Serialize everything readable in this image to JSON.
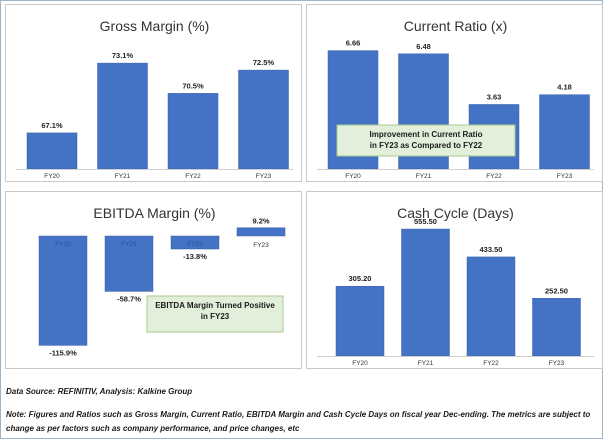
{
  "chart_data": [
    {
      "type": "bar",
      "title": "Gross Margin (%)",
      "categories": [
        "FY20",
        "FY21",
        "FY22",
        "FY23"
      ],
      "values": [
        67.1,
        73.1,
        70.5,
        72.5
      ],
      "labels": [
        "67.1%",
        "73.1%",
        "70.5%",
        "72.5%"
      ],
      "ylim": [
        64,
        75
      ],
      "bar_color": "#4472c4",
      "legend": "none"
    },
    {
      "type": "bar",
      "title": "Current Ratio (x)",
      "categories": [
        "FY20",
        "FY21",
        "FY22",
        "FY23"
      ],
      "values": [
        6.66,
        6.48,
        3.63,
        4.18
      ],
      "labels": [
        "6.66",
        "6.48",
        "3.63",
        "4.18"
      ],
      "ylim": [
        0,
        7.2
      ],
      "bar_color": "#4472c4",
      "annotation": [
        "Improvement in Current Ratio",
        "in FY23 as Compared to FY22"
      ],
      "legend": "none"
    },
    {
      "type": "bar",
      "title": "EBITDA Margin (%)",
      "categories": [
        "FY20",
        "FY21",
        "FY22",
        "FY23"
      ],
      "values": [
        -115.9,
        -58.7,
        -13.8,
        9.2
      ],
      "labels": [
        "-115.9%",
        "-58.7%",
        "-13.8%",
        "9.2%"
      ],
      "ylim": [
        -125,
        15
      ],
      "bar_color": "#4472c4",
      "annotation": [
        "EBITDA Margin Turned Positive",
        "in FY23"
      ],
      "legend": "none"
    },
    {
      "type": "bar",
      "title": "Cash Cycle (Days)",
      "categories": [
        "FY20",
        "FY21",
        "FY22",
        "FY23"
      ],
      "values": [
        305.2,
        555.5,
        433.5,
        252.5
      ],
      "labels": [
        "305.20",
        "555.50",
        "433.50",
        "252.50"
      ],
      "ylim": [
        0,
        560
      ],
      "bar_color": "#4472c4",
      "legend": "none"
    }
  ],
  "footer": {
    "source": "Data Source: REFINITIV, Analysis: Kalkine Group",
    "note": "Note: Figures and Ratios such as Gross Margin, Current Ratio, EBITDA Margin and Cash Cycle Days on fiscal year Dec-ending. The metrics are subject to change as per factors such as company performance, and price changes, etc"
  },
  "colors": {
    "bar": "#4472c4",
    "annotation_fill": "#e2efda",
    "annotation_border": "#a9c98e"
  }
}
